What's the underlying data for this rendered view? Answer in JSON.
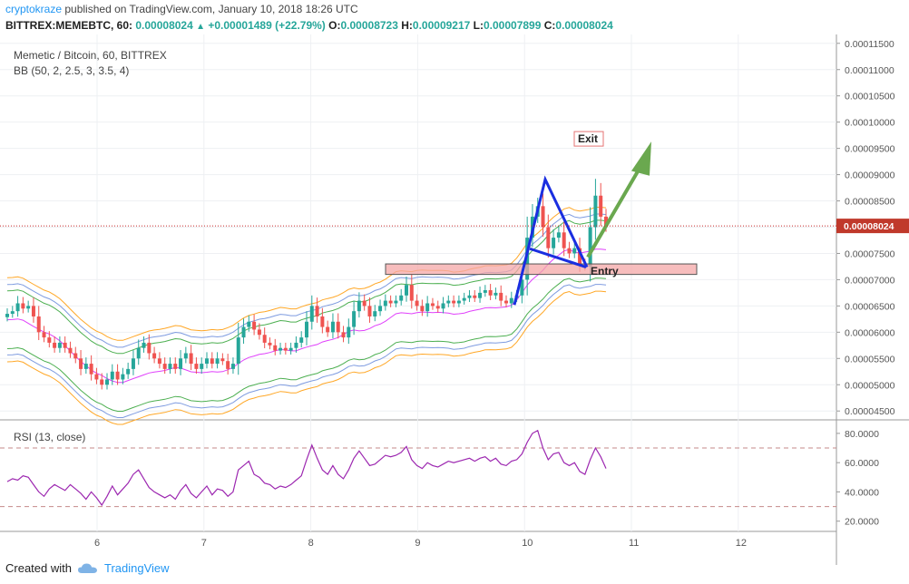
{
  "header": {
    "user": "cryptokraze",
    "published_text": " published on TradingView.com, January 10, 2018 18:26 UTC",
    "symbol_line": "BITTREX:MEMEBTC, 60",
    "price": "0.00008024",
    "change": "+0.00001489 (+22.79%)",
    "o_label": "O:",
    "o": "0.00008723",
    "h_label": "H:",
    "h": "0.00009217",
    "l_label": "L:",
    "l": "0.00007899",
    "c_label": "C:",
    "c": "0.00008024"
  },
  "legend": {
    "title": "Memetic / Bitcoin, 60, BITTREX",
    "bb": "BB (50, 2, 2.5, 3, 3.5, 4)",
    "rsi": "RSI (13, close)"
  },
  "footer": {
    "created_with": "Created with",
    "brand": "TradingView",
    "brand_icon": "cloud-icon"
  },
  "colors": {
    "up": "#26a69a",
    "down": "#ef5350",
    "bb_mid": "#e040fb",
    "bb_green": "#4caf50",
    "bb_blue": "#7e9be0",
    "bb_orange": "#ffa726",
    "rsi": "#9c27b0",
    "pattern": "#1a2ee0",
    "arrow": "#6aa84f",
    "zone": "#f4a7a7"
  },
  "chart_data": [
    {
      "type": "candlestick",
      "ylim": [
        4.4e-05,
        0.000116
      ],
      "y_ticks": [
        "0.00011500",
        "0.00011000",
        "0.00010500",
        "0.00010000",
        "0.00009500",
        "0.00009000",
        "0.00008500",
        "0.00008000",
        "0.00007500",
        "0.00007000",
        "0.00006500",
        "0.00006000",
        "0.00005500",
        "0.00005000",
        "0.00004500"
      ],
      "x_ticks": [
        "6",
        "7",
        "8",
        "9",
        "10",
        "11",
        "12"
      ],
      "last_price_label": "0.00008024",
      "last_price": 8.024e-05,
      "annotations": {
        "exit": "Exit",
        "entry": "Entry"
      },
      "entry_zone": [
        7.1e-05,
        7.3e-05
      ],
      "ohlc_sample_note_free": true,
      "close": [
        6.35e-05,
        6.4e-05,
        6.55e-05,
        6.45e-05,
        6.5e-05,
        6.3e-05,
        6e-05,
        5.9e-05,
        5.8e-05,
        5.7e-05,
        5.8e-05,
        5.7e-05,
        5.6e-05,
        5.5e-05,
        5.3e-05,
        5.4e-05,
        5.2e-05,
        5.1e-05,
        5e-05,
        5.1e-05,
        5.25e-05,
        5.1e-05,
        5.2e-05,
        5.3e-05,
        5.5e-05,
        5.7e-05,
        5.8e-05,
        5.6e-05,
        5.5e-05,
        5.4e-05,
        5.3e-05,
        5.4e-05,
        5.3e-05,
        5.5e-05,
        5.6e-05,
        5.4e-05,
        5.3e-05,
        5.4e-05,
        5.5e-05,
        5.4e-05,
        5.5e-05,
        5.45e-05,
        5.3e-05,
        5.4e-05,
        5.9e-05,
        6.1e-05,
        6.2e-05,
        6.05e-05,
        5.95e-05,
        5.8e-05,
        5.75e-05,
        5.65e-05,
        5.7e-05,
        5.65e-05,
        5.7e-05,
        5.8e-05,
        5.9e-05,
        6.2e-05,
        6.5e-05,
        6.3e-05,
        6.1e-05,
        6e-05,
        6.2e-05,
        6e-05,
        5.9e-05,
        6.1e-05,
        6.4e-05,
        6.6e-05,
        6.5e-05,
        6.3e-05,
        6.4e-05,
        6.5e-05,
        6.6e-05,
        6.55e-05,
        6.6e-05,
        6.7e-05,
        6.9e-05,
        6.6e-05,
        6.5e-05,
        6.4e-05,
        6.55e-05,
        6.5e-05,
        6.45e-05,
        6.55e-05,
        6.6e-05,
        6.55e-05,
        6.6e-05,
        6.65e-05,
        6.7e-05,
        6.65e-05,
        6.75e-05,
        6.8e-05,
        6.7e-05,
        6.75e-05,
        6.6e-05,
        6.55e-05,
        6.65e-05,
        6.7e-05,
        7e-05,
        7.8e-05,
        8.2e-05,
        8.4e-05,
        8e-05,
        7.6e-05,
        7.8e-05,
        7.9e-05,
        7.6e-05,
        7.5e-05,
        7.6e-05,
        7.3e-05,
        7.25e-05,
        8e-05,
        8.6e-05,
        8.2e-05,
        8.024e-05
      ],
      "rsi": {
        "ylim": [
          13,
          88
        ],
        "y_ticks": [
          "80.0000",
          "60.0000",
          "40.0000",
          "20.0000"
        ],
        "bands": [
          70,
          30
        ],
        "values": [
          47,
          49,
          48,
          51,
          50,
          45,
          40,
          37,
          42,
          45,
          43,
          41,
          45,
          42,
          39,
          35,
          40,
          36,
          31,
          37,
          44,
          38,
          42,
          46,
          52,
          55,
          49,
          43,
          40,
          38,
          36,
          38,
          35,
          41,
          45,
          39,
          36,
          40,
          44,
          38,
          42,
          41,
          37,
          40,
          55,
          58,
          61,
          52,
          50,
          46,
          45,
          42,
          44,
          43,
          45,
          48,
          51,
          62,
          72,
          63,
          55,
          52,
          58,
          52,
          49,
          55,
          63,
          68,
          63,
          58,
          59,
          62,
          65,
          64,
          65,
          67,
          71,
          62,
          58,
          56,
          60,
          58,
          57,
          59,
          61,
          60,
          61,
          62,
          63,
          61,
          63,
          64,
          61,
          63,
          59,
          58,
          61,
          62,
          66,
          74,
          80,
          82,
          70,
          62,
          66,
          67,
          60,
          58,
          60,
          54,
          52,
          62,
          70,
          64,
          56
        ]
      }
    }
  ]
}
